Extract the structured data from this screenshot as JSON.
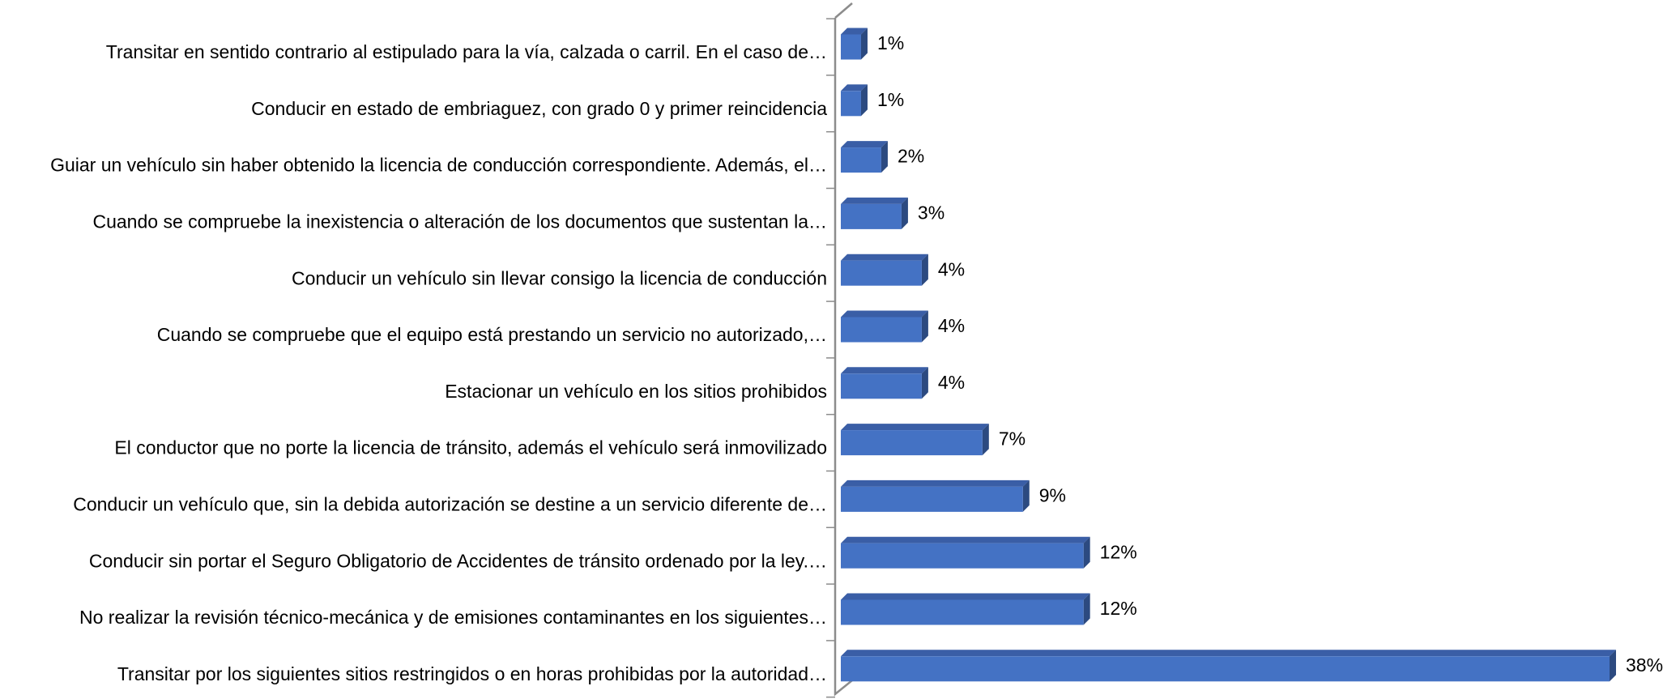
{
  "chart_data": {
    "type": "bar3d_horizontal",
    "categories": [
      "Transitar en sentido contrario al estipulado para la vía, calzada o carril. En el caso de…",
      "Conducir en estado de embriaguez, con grado 0 y primer reincidencia",
      "Guiar un vehículo sin haber obtenido la licencia de conducción correspondiente. Además, el…",
      "Cuando se compruebe la inexistencia o alteración de los documentos que sustentan la…",
      "Conducir un vehículo sin llevar consigo la licencia de conducción",
      "Cuando se compruebe que el equipo está prestando un servicio no autorizado,…",
      "Estacionar un vehículo en los sitios prohibidos",
      "El conductor que no porte la licencia de tránsito, además el vehículo será inmovilizado",
      "Conducir un vehículo que, sin la debida autorización se destine a un servicio diferente de…",
      "Conducir sin portar el Seguro Obligatorio de Accidentes de tránsito ordenado por la ley.…",
      "No realizar la revisión técnico-mecánica y de emisiones contaminantes en los siguientes…",
      "Transitar por los siguientes sitios restringidos o en horas prohibidas por la autoridad…"
    ],
    "values": [
      1,
      1,
      2,
      3,
      4,
      4,
      4,
      7,
      9,
      12,
      12,
      38
    ],
    "value_labels": [
      "1%",
      "1%",
      "2%",
      "3%",
      "4%",
      "4%",
      "4%",
      "7%",
      "9%",
      "12%",
      "12%",
      "38%"
    ],
    "color": "#4472c4"
  }
}
